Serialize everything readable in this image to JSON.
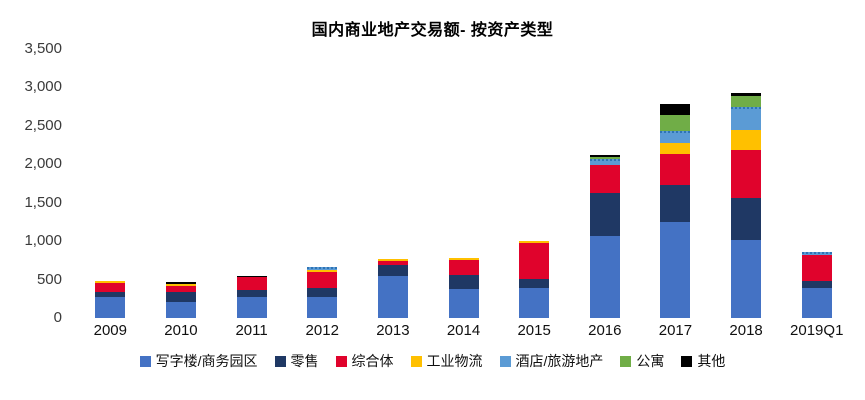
{
  "chart_data": {
    "type": "bar",
    "stacked": true,
    "title": "国内商业地产交易额- 按资产类型",
    "categories": [
      "2009",
      "2010",
      "2011",
      "2012",
      "2013",
      "2014",
      "2015",
      "2016",
      "2017",
      "2018",
      "2019Q1"
    ],
    "series": [
      {
        "key": "office",
        "name": "写字楼/商务园区",
        "color": "#4472c4",
        "dotted_top": false,
        "values": [
          275,
          215,
          280,
          280,
          550,
          375,
          395,
          1070,
          1255,
          1020,
          390
        ]
      },
      {
        "key": "retail",
        "name": "零售",
        "color": "#1f3864",
        "dotted_top": false,
        "values": [
          60,
          120,
          80,
          115,
          135,
          180,
          115,
          560,
          470,
          545,
          90
        ]
      },
      {
        "key": "mixed-use",
        "name": "综合体",
        "color": "#e0032c",
        "dotted_top": false,
        "values": [
          120,
          85,
          170,
          200,
          60,
          205,
          465,
          360,
          410,
          620,
          335
        ]
      },
      {
        "key": "industrial",
        "name": "工业物流",
        "color": "#ffc000",
        "dotted_top": false,
        "values": [
          25,
          25,
          0,
          35,
          25,
          25,
          25,
          0,
          145,
          265,
          0
        ]
      },
      {
        "key": "hotel",
        "name": "酒店/旅游地产",
        "color": "#5b9bd5",
        "dotted_top": true,
        "values": [
          0,
          0,
          0,
          35,
          0,
          0,
          0,
          80,
          150,
          290,
          30
        ]
      },
      {
        "key": "apartment",
        "name": "公寓",
        "color": "#70ad47",
        "dotted_top": false,
        "values": [
          0,
          0,
          0,
          0,
          0,
          0,
          0,
          25,
          215,
          150,
          0
        ]
      },
      {
        "key": "other",
        "name": "其他",
        "color": "#000000",
        "dotted_top": false,
        "values": [
          0,
          20,
          20,
          0,
          0,
          0,
          0,
          25,
          135,
          35,
          0
        ]
      }
    ],
    "ylim": [
      0,
      3500
    ],
    "ytick_values": [
      0,
      500,
      1000,
      1500,
      2000,
      2500,
      3000,
      3500
    ],
    "ytick_labels": [
      "0",
      "500",
      "1,000",
      "1,500",
      "2,000",
      "2,500",
      "3,000",
      "3,500"
    ],
    "grid": false,
    "axis_lines": false,
    "legend_position": "bottom"
  }
}
